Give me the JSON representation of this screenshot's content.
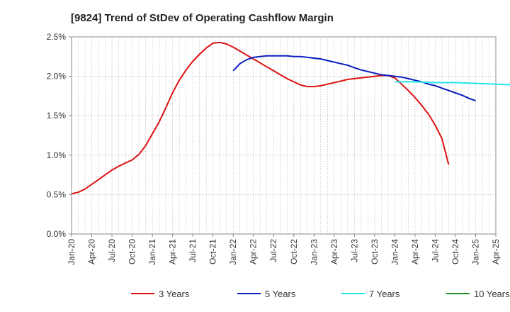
{
  "chart_data": {
    "type": "line",
    "title": "[9824]  Trend of StDev of Operating Cashflow Margin",
    "xlabel": "",
    "ylabel": "",
    "x_tick_labels": [
      "Jan-20",
      "Apr-20",
      "Jul-20",
      "Oct-20",
      "Jan-21",
      "Apr-21",
      "Jul-21",
      "Oct-21",
      "Jan-22",
      "Apr-22",
      "Jul-22",
      "Oct-22",
      "Jan-23",
      "Apr-23",
      "Jul-23",
      "Oct-23",
      "Jan-24",
      "Apr-24",
      "Jul-24",
      "Oct-24",
      "Jan-25",
      "Apr-25"
    ],
    "y_tick_labels": [
      "0.0%",
      "0.5%",
      "1.0%",
      "1.5%",
      "2.0%",
      "2.5%"
    ],
    "ylim": [
      0,
      2.5
    ],
    "grid": true,
    "legend_position": "bottom",
    "series": [
      {
        "name": "3 Years",
        "color": "#dd1111",
        "points": [
          [
            "Jan-20",
            0.51
          ],
          [
            "Feb-20",
            0.53
          ],
          [
            "Mar-20",
            0.57
          ],
          [
            "Apr-20",
            0.63
          ],
          [
            "May-20",
            0.69
          ],
          [
            "Jun-20",
            0.75
          ],
          [
            "Jul-20",
            0.81
          ],
          [
            "Aug-20",
            0.86
          ],
          [
            "Sep-20",
            0.9
          ],
          [
            "Oct-20",
            0.94
          ],
          [
            "Nov-20",
            1.01
          ],
          [
            "Dec-20",
            1.12
          ],
          [
            "Jan-21",
            1.27
          ],
          [
            "Feb-21",
            1.42
          ],
          [
            "Mar-21",
            1.6
          ],
          [
            "Apr-21",
            1.79
          ],
          [
            "May-21",
            1.95
          ],
          [
            "Jun-21",
            2.08
          ],
          [
            "Jul-21",
            2.19
          ],
          [
            "Aug-21",
            2.28
          ],
          [
            "Sep-21",
            2.36
          ],
          [
            "Oct-21",
            2.42
          ],
          [
            "Nov-21",
            2.43
          ],
          [
            "Dec-21",
            2.41
          ],
          [
            "Jan-22",
            2.37
          ],
          [
            "Feb-22",
            2.32
          ],
          [
            "Mar-22",
            2.27
          ],
          [
            "Apr-22",
            2.22
          ],
          [
            "May-22",
            2.17
          ],
          [
            "Jun-22",
            2.12
          ],
          [
            "Jul-22",
            2.07
          ],
          [
            "Aug-22",
            2.02
          ],
          [
            "Sep-22",
            1.97
          ],
          [
            "Oct-22",
            1.93
          ],
          [
            "Nov-22",
            1.89
          ],
          [
            "Dec-22",
            1.87
          ],
          [
            "Jan-23",
            1.87
          ],
          [
            "Feb-23",
            1.88
          ],
          [
            "Mar-23",
            1.9
          ],
          [
            "Apr-23",
            1.92
          ],
          [
            "May-23",
            1.94
          ],
          [
            "Jun-23",
            1.96
          ],
          [
            "Jul-23",
            1.97
          ],
          [
            "Aug-23",
            1.98
          ],
          [
            "Sep-23",
            1.99
          ],
          [
            "Oct-23",
            2.0
          ],
          [
            "Nov-23",
            2.01
          ],
          [
            "Dec-23",
            2.01
          ],
          [
            "Jan-24",
            1.98
          ],
          [
            "Feb-24",
            1.9
          ],
          [
            "Mar-24",
            1.82
          ],
          [
            "Apr-24",
            1.73
          ],
          [
            "May-24",
            1.63
          ],
          [
            "Jun-24",
            1.52
          ],
          [
            "Jul-24",
            1.38
          ],
          [
            "Aug-24",
            1.21
          ],
          [
            "Sep-24",
            0.88
          ]
        ]
      },
      {
        "name": "5 Years",
        "color": "#0a1ebf",
        "points": [
          [
            "Jan-22",
            2.07
          ],
          [
            "Feb-22",
            2.16
          ],
          [
            "Mar-22",
            2.21
          ],
          [
            "Apr-22",
            2.24
          ],
          [
            "May-22",
            2.25
          ],
          [
            "Jun-22",
            2.26
          ],
          [
            "Jul-22",
            2.26
          ],
          [
            "Aug-22",
            2.26
          ],
          [
            "Sep-22",
            2.26
          ],
          [
            "Oct-22",
            2.25
          ],
          [
            "Nov-22",
            2.25
          ],
          [
            "Dec-22",
            2.24
          ],
          [
            "Jan-23",
            2.23
          ],
          [
            "Feb-23",
            2.22
          ],
          [
            "Mar-23",
            2.2
          ],
          [
            "Apr-23",
            2.18
          ],
          [
            "May-23",
            2.16
          ],
          [
            "Jun-23",
            2.14
          ],
          [
            "Jul-23",
            2.11
          ],
          [
            "Aug-23",
            2.08
          ],
          [
            "Sep-23",
            2.06
          ],
          [
            "Oct-23",
            2.04
          ],
          [
            "Nov-23",
            2.02
          ],
          [
            "Dec-23",
            2.01
          ],
          [
            "Jan-24",
            2.0
          ],
          [
            "Feb-24",
            1.99
          ],
          [
            "Mar-24",
            1.97
          ],
          [
            "Apr-24",
            1.95
          ],
          [
            "May-24",
            1.93
          ],
          [
            "Jun-24",
            1.9
          ],
          [
            "Jul-24",
            1.88
          ],
          [
            "Aug-24",
            1.85
          ],
          [
            "Sep-24",
            1.82
          ],
          [
            "Oct-24",
            1.79
          ],
          [
            "Nov-24",
            1.76
          ],
          [
            "Dec-24",
            1.72
          ],
          [
            "Jan-25",
            1.69
          ]
        ]
      },
      {
        "name": "7 Years",
        "color": "#22e5ee",
        "points": [
          [
            "Jan-24",
            1.93
          ],
          [
            "Apr-24",
            1.93
          ],
          [
            "Jul-24",
            1.92
          ],
          [
            "Oct-24",
            1.92
          ],
          [
            "Jan-25",
            1.91
          ],
          [
            "Apr-25",
            1.9
          ],
          [
            "Jul-25",
            1.89
          ]
        ]
      },
      {
        "name": "10 Years",
        "color": "#1e8c1e",
        "points": []
      }
    ]
  }
}
